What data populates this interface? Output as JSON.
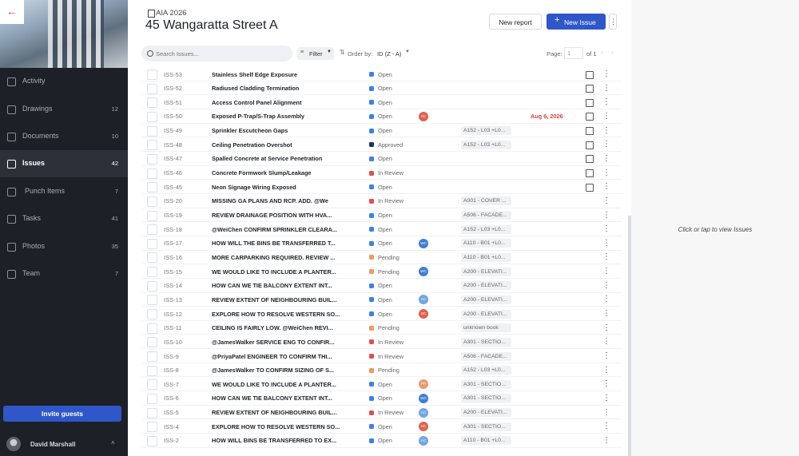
{
  "sidebar": {
    "nav": [
      {
        "label": "Activity"
      },
      {
        "label": "Drawings",
        "count": 12
      },
      {
        "label": "Documents",
        "count": 10
      },
      {
        "label": "Issues",
        "count": 42
      },
      {
        "label": "Punch Items",
        "count": 7
      },
      {
        "label": "Tasks",
        "count": 41
      },
      {
        "label": "Photos",
        "count": 35
      },
      {
        "label": "Team",
        "count": 7
      }
    ],
    "invite": "Invite guests",
    "user": "David Marshall"
  },
  "header": {
    "project": "AIA 2026",
    "title": "45 Wangaratta Street A",
    "new_report": "New report",
    "new_issue": "New Issue"
  },
  "toolbar": {
    "search_placeholder": "Search Issues...",
    "filter": "Filter",
    "order_label": "Order by:",
    "order_value": "ID (Z - A)",
    "page_label": "Page:",
    "page": 1,
    "page_total": "of 1"
  },
  "table": {
    "rows": [
      {
        "id": "ISS-53",
        "title": "Stainless Shelf Edge Exposure",
        "status": "Open",
        "photo": true
      },
      {
        "id": "ISS-52",
        "title": "Radiused Cladding Termination",
        "status": "Open",
        "photo": true
      },
      {
        "id": "ISS-51",
        "title": "Access Control Panel Alignment",
        "status": "Open",
        "photo": true
      },
      {
        "id": "ISS-50",
        "title": "Exposed P-Trap/S-Trap Assembly",
        "status": "Open",
        "avatar": "SC",
        "due": "Aug 6, 2026",
        "photo": true
      },
      {
        "id": "ISS-49",
        "title": "Sprinkler Escutcheon Gaps",
        "status": "Open",
        "location": "A152 - L03 +L0...",
        "photo": true
      },
      {
        "id": "ISS-48",
        "title": "Ceiling Penetration Overshot",
        "status": "Approved",
        "location": "A152 - L03 +L0...",
        "photo": true
      },
      {
        "id": "ISS-47",
        "title": "Spalled Concrete at Service Penetration",
        "status": "Open",
        "photo": true
      },
      {
        "id": "ISS-46",
        "title": "Concrete Formwork Slump/Leakage",
        "status": "In Review",
        "photo": true
      },
      {
        "id": "ISS-45",
        "title": "Neon Signage Wiring Exposed",
        "status": "Open",
        "photo": true
      },
      {
        "id": "ISS-20",
        "title": "MISSING GA PLANS AND RCP. ADD. @We",
        "status": "In Review",
        "location": "A001 - COVER ..."
      },
      {
        "id": "ISS-19",
        "title": "REVIEW DRAINAGE POSITION WITH HVA...",
        "status": "Open",
        "location": "A506 - FACADE..."
      },
      {
        "id": "ISS-18",
        "title": "@WeiChen CONFIRM SPRINKLER CLEARA...",
        "status": "Open",
        "location": "A152 - L03 +L0..."
      },
      {
        "id": "ISS-17",
        "title": "HOW WILL THE BINS BE TRANSFERRED T...",
        "status": "Open",
        "avatar": "WC",
        "location": "A110 - B01 +L0..."
      },
      {
        "id": "ISS-16",
        "title": "MORE CARPARKING REQUIRED. REVIEW ...",
        "status": "Pending",
        "location": "A110 - B01 +L0..."
      },
      {
        "id": "ISS-15",
        "title": "WE WOULD LIKE TO INCLUDE A PLANTER...",
        "status": "Pending",
        "avatar": "WC",
        "location": "A200 - ELEVATI..."
      },
      {
        "id": "ISS-14",
        "title": "HOW CAN WE TIE BALCONY EXTENT INT...",
        "status": "Open",
        "location": "A200 - ELEVATI..."
      },
      {
        "id": "ISS-13",
        "title": "REVIEW EXTENT OF NEIGHBOURING BUIL...",
        "status": "Open",
        "avatar": "AC",
        "location": "A200 - ELEVATI..."
      },
      {
        "id": "ISS-12",
        "title": "EXPLORE HOW TO RESOLVE WESTERN SO...",
        "status": "Open",
        "avatar": "SC",
        "location": "A200 - ELEVATI..."
      },
      {
        "id": "ISS-11",
        "title": "CEILING IS FAIRLY LOW. @WeiChen REVI...",
        "status": "Pending",
        "location": "unknown book"
      },
      {
        "id": "ISS-10",
        "title": "@JamesWalker SERVICE ENG TO CONFIR...",
        "status": "In Review",
        "location": "A301 - SECTIO..."
      },
      {
        "id": "ISS-9",
        "title": "@PriyaPatel ENGINEER TO CONFIRM THI...",
        "status": "In Review",
        "location": "A506 - FACADE..."
      },
      {
        "id": "ISS-8",
        "title": "@JamesWalker TO CONFIRM SIZING OF S...",
        "status": "Pending",
        "location": "A152 - L03 +L0..."
      },
      {
        "id": "ISS-7",
        "title": "WE WOULD LIKE TO INCLUDE A PLANTER...",
        "status": "Open",
        "avatar": "PP",
        "location": "A301 - SECTIO..."
      },
      {
        "id": "ISS-6",
        "title": "HOW CAN WE TIE BALCONY EXTENT INT...",
        "status": "Open",
        "avatar": "WC",
        "location": "A301 - SECTIO..."
      },
      {
        "id": "ISS-5",
        "title": "REVIEW EXTENT OF NEIGHBOURING BUIL...",
        "status": "In Review",
        "avatar": "AC",
        "location": "A200 - ELEVATI..."
      },
      {
        "id": "ISS-4",
        "title": "EXPLORE HOW TO RESOLVE WESTERN SO...",
        "status": "Open",
        "avatar": "SC",
        "location": "A301 - SECTIO..."
      },
      {
        "id": "ISS-2",
        "title": "HOW WILL BINS BE TRANSFERRED TO EX...",
        "status": "Open",
        "avatar": "AC",
        "location": "A110 - B01 +L0..."
      }
    ]
  },
  "detail": {
    "empty_text": "Click or tap to view Issues"
  }
}
